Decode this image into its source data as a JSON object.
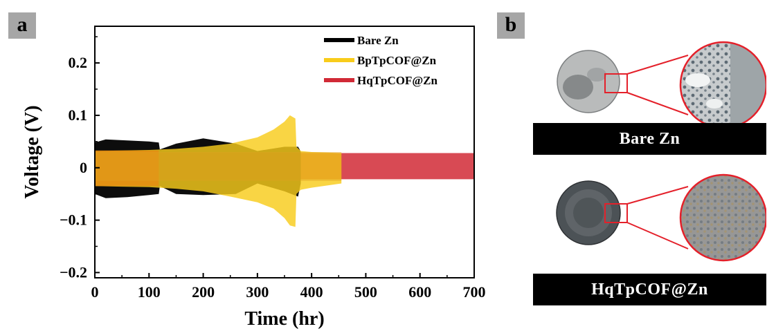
{
  "panel_labels": {
    "a": "a",
    "b": "b"
  },
  "chart_data": {
    "type": "area",
    "xlabel": "Time (hr)",
    "ylabel": "Voltage (V)",
    "xlim": [
      0,
      700
    ],
    "ylim": [
      -0.21,
      0.27
    ],
    "x_ticks": [
      0,
      100,
      200,
      300,
      400,
      500,
      600,
      700
    ],
    "y_ticks": [
      {
        "value": 0.2,
        "label": "0.2"
      },
      {
        "value": 0.1,
        "label": "0.1"
      },
      {
        "value": 0,
        "label": "0"
      },
      {
        "value": -0.1,
        "label": "−0.1"
      },
      {
        "value": -0.2,
        "label": "−0.2"
      }
    ],
    "grid": false,
    "legend_position": "top-right",
    "series": [
      {
        "name": "HqTpCOF@Zn",
        "color": "#d12a36",
        "x": [
          0,
          100,
          200,
          300,
          380,
          400,
          500,
          600,
          700
        ],
        "upper": [
          0.028,
          0.028,
          0.028,
          0.028,
          0.028,
          0.028,
          0.028,
          0.028,
          0.028
        ],
        "lower": [
          -0.022,
          -0.022,
          -0.022,
          -0.022,
          -0.022,
          -0.022,
          -0.022,
          -0.022,
          -0.022
        ]
      },
      {
        "name": "Bare Zn",
        "color": "#000000",
        "x": [
          0,
          20,
          60,
          100,
          118,
          120,
          150,
          200,
          260,
          300,
          350,
          375,
          378,
          380
        ],
        "upper": [
          0.048,
          0.054,
          0.052,
          0.05,
          0.048,
          0.035,
          0.046,
          0.056,
          0.046,
          0.032,
          0.04,
          0.04,
          0.035,
          0.03
        ],
        "lower": [
          -0.05,
          -0.058,
          -0.056,
          -0.052,
          -0.05,
          -0.035,
          -0.05,
          -0.052,
          -0.05,
          -0.03,
          -0.045,
          -0.055,
          -0.04,
          -0.03
        ]
      },
      {
        "name": "BpTpCOF@Zn",
        "color": "#f8cc1b",
        "x": [
          0,
          50,
          100,
          150,
          200,
          250,
          300,
          330,
          350,
          360,
          370,
          372,
          380,
          400,
          455
        ],
        "upper": [
          0.032,
          0.033,
          0.034,
          0.036,
          0.04,
          0.046,
          0.058,
          0.073,
          0.088,
          0.1,
          0.094,
          0.04,
          0.032,
          0.03,
          0.028
        ],
        "lower": [
          -0.035,
          -0.036,
          -0.037,
          -0.04,
          -0.045,
          -0.055,
          -0.066,
          -0.078,
          -0.096,
          -0.11,
          -0.113,
          -0.05,
          -0.042,
          -0.038,
          -0.03
        ]
      }
    ]
  },
  "photos": {
    "bare": {
      "label": "Bare Zn"
    },
    "hq": {
      "label": "HqTpCOF@Zn"
    }
  }
}
